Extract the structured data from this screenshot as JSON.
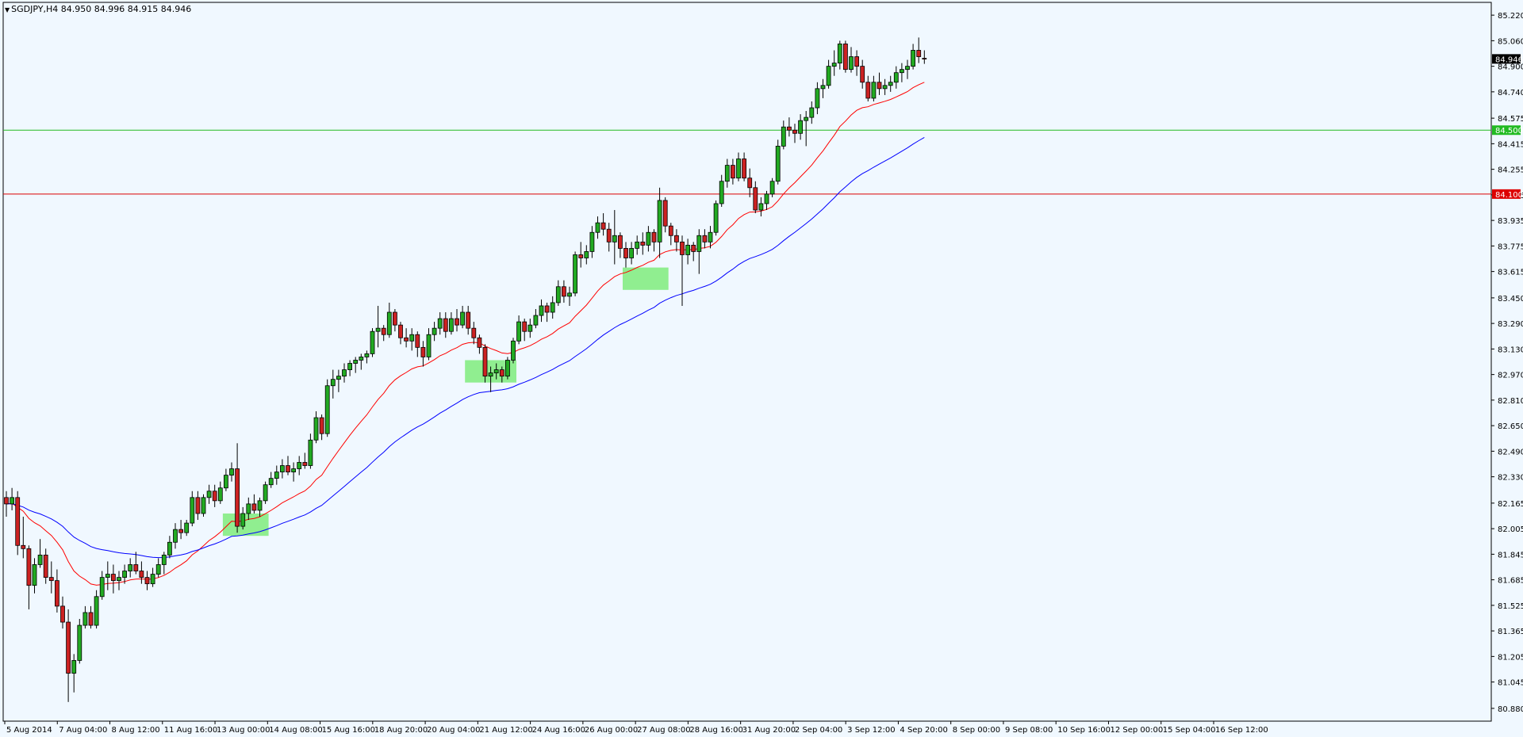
{
  "header": {
    "symbol": "SGDJPY,H4",
    "ohlc": "84.950 84.996 84.915 84.946"
  },
  "colors": {
    "background": "#f0f8ff",
    "bull": "#22aa22",
    "bear": "#cc2222",
    "ema_fast": "#ff0000",
    "ema_slow": "#0000ff",
    "support": "#22bb22",
    "resistance": "#dd0000",
    "highlight": "#90ee90"
  },
  "chart_data": {
    "type": "candlestick",
    "timeframe": "H4",
    "ylim": [
      80.8,
      85.3
    ],
    "y_ticks": [
      "85.220",
      "85.060",
      "84.900",
      "84.740",
      "84.575",
      "84.415",
      "84.255",
      "84.095",
      "83.935",
      "83.775",
      "83.615",
      "83.450",
      "83.290",
      "83.130",
      "82.970",
      "82.810",
      "82.650",
      "82.490",
      "82.330",
      "82.165",
      "82.005",
      "81.845",
      "81.685",
      "81.525",
      "81.365",
      "81.205",
      "81.045",
      "80.880"
    ],
    "x_ticks": [
      "5 Aug 2014",
      "7 Aug 04:00",
      "8 Aug 12:00",
      "11 Aug 16:00",
      "13 Aug 00:00",
      "14 Aug 08:00",
      "15 Aug 16:00",
      "18 Aug 20:00",
      "20 Aug 04:00",
      "21 Aug 12:00",
      "24 Aug 16:00",
      "26 Aug 00:00",
      "27 Aug 08:00",
      "28 Aug 16:00",
      "31 Aug 20:00",
      "2 Sep 04:00",
      "3 Sep 12:00",
      "4 Sep 20:00",
      "8 Sep 00:00",
      "9 Sep 08:00",
      "10 Sep 16:00",
      "12 Sep 00:00",
      "15 Sep 04:00",
      "16 Sep 12:00"
    ],
    "price_tags": {
      "current": "84.946",
      "support": "84.500",
      "resistance": "84.100"
    },
    "horizontal_lines": [
      {
        "name": "support",
        "price": 84.5
      },
      {
        "name": "resistance",
        "price": 84.1
      }
    ],
    "candles": [
      {
        "o": 82.2,
        "h": 82.24,
        "l": 82.08,
        "c": 82.16
      },
      {
        "o": 82.16,
        "h": 82.26,
        "l": 82.12,
        "c": 82.2
      },
      {
        "o": 82.2,
        "h": 82.24,
        "l": 81.84,
        "c": 81.9
      },
      {
        "o": 81.9,
        "h": 82.08,
        "l": 81.82,
        "c": 81.88
      },
      {
        "o": 81.88,
        "h": 81.9,
        "l": 81.5,
        "c": 81.65
      },
      {
        "o": 81.65,
        "h": 81.82,
        "l": 81.6,
        "c": 81.78
      },
      {
        "o": 81.78,
        "h": 81.94,
        "l": 81.76,
        "c": 81.84
      },
      {
        "o": 81.84,
        "h": 81.88,
        "l": 81.66,
        "c": 81.7
      },
      {
        "o": 81.7,
        "h": 81.8,
        "l": 81.6,
        "c": 81.68
      },
      {
        "o": 81.68,
        "h": 81.75,
        "l": 81.48,
        "c": 81.52
      },
      {
        "o": 81.52,
        "h": 81.58,
        "l": 81.38,
        "c": 81.42
      },
      {
        "o": 81.42,
        "h": 81.5,
        "l": 80.92,
        "c": 81.1
      },
      {
        "o": 81.1,
        "h": 81.22,
        "l": 80.98,
        "c": 81.18
      },
      {
        "o": 81.18,
        "h": 81.44,
        "l": 81.16,
        "c": 81.4
      },
      {
        "o": 81.4,
        "h": 81.52,
        "l": 81.38,
        "c": 81.48
      },
      {
        "o": 81.48,
        "h": 81.52,
        "l": 81.38,
        "c": 81.4
      },
      {
        "o": 81.4,
        "h": 81.62,
        "l": 81.38,
        "c": 81.58
      },
      {
        "o": 81.58,
        "h": 81.74,
        "l": 81.56,
        "c": 81.7
      },
      {
        "o": 81.7,
        "h": 81.8,
        "l": 81.62,
        "c": 81.72
      },
      {
        "o": 81.72,
        "h": 81.78,
        "l": 81.6,
        "c": 81.68
      },
      {
        "o": 81.68,
        "h": 81.74,
        "l": 81.62,
        "c": 81.7
      },
      {
        "o": 81.7,
        "h": 81.78,
        "l": 81.66,
        "c": 81.74
      },
      {
        "o": 81.74,
        "h": 81.82,
        "l": 81.7,
        "c": 81.78
      },
      {
        "o": 81.78,
        "h": 81.86,
        "l": 81.72,
        "c": 81.74
      },
      {
        "o": 81.74,
        "h": 81.8,
        "l": 81.66,
        "c": 81.7
      },
      {
        "o": 81.7,
        "h": 81.74,
        "l": 81.62,
        "c": 81.66
      },
      {
        "o": 81.66,
        "h": 81.76,
        "l": 81.64,
        "c": 81.72
      },
      {
        "o": 81.72,
        "h": 81.82,
        "l": 81.7,
        "c": 81.78
      },
      {
        "o": 81.78,
        "h": 81.86,
        "l": 81.72,
        "c": 81.84
      },
      {
        "o": 81.84,
        "h": 81.96,
        "l": 81.82,
        "c": 81.92
      },
      {
        "o": 81.92,
        "h": 82.04,
        "l": 81.88,
        "c": 82.0
      },
      {
        "o": 82.0,
        "h": 82.06,
        "l": 81.94,
        "c": 81.98
      },
      {
        "o": 81.98,
        "h": 82.06,
        "l": 81.96,
        "c": 82.04
      },
      {
        "o": 82.04,
        "h": 82.24,
        "l": 82.02,
        "c": 82.2
      },
      {
        "o": 82.2,
        "h": 82.24,
        "l": 82.06,
        "c": 82.1
      },
      {
        "o": 82.1,
        "h": 82.22,
        "l": 82.08,
        "c": 82.2
      },
      {
        "o": 82.2,
        "h": 82.28,
        "l": 82.16,
        "c": 82.24
      },
      {
        "o": 82.24,
        "h": 82.28,
        "l": 82.14,
        "c": 82.18
      },
      {
        "o": 82.18,
        "h": 82.3,
        "l": 82.16,
        "c": 82.26
      },
      {
        "o": 82.26,
        "h": 82.38,
        "l": 82.24,
        "c": 82.34
      },
      {
        "o": 82.34,
        "h": 82.42,
        "l": 82.3,
        "c": 82.38
      },
      {
        "o": 82.38,
        "h": 82.54,
        "l": 81.98,
        "c": 82.02
      },
      {
        "o": 82.02,
        "h": 82.14,
        "l": 82.0,
        "c": 82.1
      },
      {
        "o": 82.1,
        "h": 82.2,
        "l": 82.06,
        "c": 82.16
      },
      {
        "o": 82.16,
        "h": 82.22,
        "l": 82.1,
        "c": 82.12
      },
      {
        "o": 82.12,
        "h": 82.2,
        "l": 82.08,
        "c": 82.18
      },
      {
        "o": 82.18,
        "h": 82.3,
        "l": 82.16,
        "c": 82.28
      },
      {
        "o": 82.28,
        "h": 82.36,
        "l": 82.26,
        "c": 82.32
      },
      {
        "o": 82.32,
        "h": 82.4,
        "l": 82.28,
        "c": 82.36
      },
      {
        "o": 82.36,
        "h": 82.44,
        "l": 82.32,
        "c": 82.4
      },
      {
        "o": 82.4,
        "h": 82.46,
        "l": 82.34,
        "c": 82.36
      },
      {
        "o": 82.36,
        "h": 82.42,
        "l": 82.3,
        "c": 82.38
      },
      {
        "o": 82.38,
        "h": 82.46,
        "l": 82.34,
        "c": 82.42
      },
      {
        "o": 82.42,
        "h": 82.48,
        "l": 82.38,
        "c": 82.4
      },
      {
        "o": 82.4,
        "h": 82.6,
        "l": 82.38,
        "c": 82.56
      },
      {
        "o": 82.56,
        "h": 82.74,
        "l": 82.54,
        "c": 82.7
      },
      {
        "o": 82.7,
        "h": 82.72,
        "l": 82.56,
        "c": 82.6
      },
      {
        "o": 82.6,
        "h": 82.94,
        "l": 82.58,
        "c": 82.9
      },
      {
        "o": 82.9,
        "h": 83.0,
        "l": 82.82,
        "c": 82.94
      },
      {
        "o": 82.94,
        "h": 83.0,
        "l": 82.86,
        "c": 82.96
      },
      {
        "o": 82.96,
        "h": 83.04,
        "l": 82.92,
        "c": 83.0
      },
      {
        "o": 83.0,
        "h": 83.06,
        "l": 82.96,
        "c": 83.04
      },
      {
        "o": 83.04,
        "h": 83.08,
        "l": 82.98,
        "c": 83.06
      },
      {
        "o": 83.06,
        "h": 83.1,
        "l": 83.0,
        "c": 83.08
      },
      {
        "o": 83.08,
        "h": 83.12,
        "l": 83.04,
        "c": 83.1
      },
      {
        "o": 83.1,
        "h": 83.26,
        "l": 83.08,
        "c": 83.24
      },
      {
        "o": 83.24,
        "h": 83.4,
        "l": 83.14,
        "c": 83.26
      },
      {
        "o": 83.26,
        "h": 83.28,
        "l": 83.18,
        "c": 83.22
      },
      {
        "o": 83.22,
        "h": 83.42,
        "l": 83.2,
        "c": 83.36
      },
      {
        "o": 83.36,
        "h": 83.38,
        "l": 83.24,
        "c": 83.28
      },
      {
        "o": 83.28,
        "h": 83.3,
        "l": 83.16,
        "c": 83.2
      },
      {
        "o": 83.2,
        "h": 83.26,
        "l": 83.14,
        "c": 83.18
      },
      {
        "o": 83.18,
        "h": 83.26,
        "l": 83.12,
        "c": 83.22
      },
      {
        "o": 83.22,
        "h": 83.24,
        "l": 83.08,
        "c": 83.14
      },
      {
        "o": 83.14,
        "h": 83.18,
        "l": 83.02,
        "c": 83.08
      },
      {
        "o": 83.08,
        "h": 83.26,
        "l": 83.06,
        "c": 83.22
      },
      {
        "o": 83.22,
        "h": 83.3,
        "l": 83.18,
        "c": 83.26
      },
      {
        "o": 83.26,
        "h": 83.36,
        "l": 83.22,
        "c": 83.32
      },
      {
        "o": 83.32,
        "h": 83.36,
        "l": 83.2,
        "c": 83.24
      },
      {
        "o": 83.24,
        "h": 83.36,
        "l": 83.22,
        "c": 83.32
      },
      {
        "o": 83.32,
        "h": 83.38,
        "l": 83.24,
        "c": 83.28
      },
      {
        "o": 83.28,
        "h": 83.4,
        "l": 83.26,
        "c": 83.36
      },
      {
        "o": 83.36,
        "h": 83.4,
        "l": 83.22,
        "c": 83.26
      },
      {
        "o": 83.26,
        "h": 83.3,
        "l": 83.16,
        "c": 83.2
      },
      {
        "o": 83.2,
        "h": 83.22,
        "l": 83.1,
        "c": 83.14
      },
      {
        "o": 83.14,
        "h": 83.16,
        "l": 82.92,
        "c": 82.96
      },
      {
        "o": 82.96,
        "h": 83.02,
        "l": 82.86,
        "c": 82.98
      },
      {
        "o": 82.98,
        "h": 83.04,
        "l": 82.94,
        "c": 83.0
      },
      {
        "o": 83.0,
        "h": 83.02,
        "l": 82.92,
        "c": 82.96
      },
      {
        "o": 82.96,
        "h": 83.08,
        "l": 82.94,
        "c": 83.06
      },
      {
        "o": 83.06,
        "h": 83.2,
        "l": 83.04,
        "c": 83.18
      },
      {
        "o": 83.18,
        "h": 83.34,
        "l": 83.16,
        "c": 83.3
      },
      {
        "o": 83.3,
        "h": 83.32,
        "l": 83.18,
        "c": 83.24
      },
      {
        "o": 83.24,
        "h": 83.32,
        "l": 83.2,
        "c": 83.28
      },
      {
        "o": 83.28,
        "h": 83.38,
        "l": 83.26,
        "c": 83.34
      },
      {
        "o": 83.34,
        "h": 83.44,
        "l": 83.3,
        "c": 83.4
      },
      {
        "o": 83.4,
        "h": 83.42,
        "l": 83.3,
        "c": 83.36
      },
      {
        "o": 83.36,
        "h": 83.46,
        "l": 83.32,
        "c": 83.42
      },
      {
        "o": 83.42,
        "h": 83.56,
        "l": 83.4,
        "c": 83.52
      },
      {
        "o": 83.52,
        "h": 83.56,
        "l": 83.42,
        "c": 83.46
      },
      {
        "o": 83.46,
        "h": 83.52,
        "l": 83.4,
        "c": 83.48
      },
      {
        "o": 83.48,
        "h": 83.74,
        "l": 83.46,
        "c": 83.72
      },
      {
        "o": 83.72,
        "h": 83.8,
        "l": 83.64,
        "c": 83.7
      },
      {
        "o": 83.7,
        "h": 83.78,
        "l": 83.66,
        "c": 83.74
      },
      {
        "o": 83.74,
        "h": 83.9,
        "l": 83.7,
        "c": 83.86
      },
      {
        "o": 83.86,
        "h": 83.96,
        "l": 83.82,
        "c": 83.92
      },
      {
        "o": 83.92,
        "h": 83.98,
        "l": 83.84,
        "c": 83.88
      },
      {
        "o": 83.88,
        "h": 83.92,
        "l": 83.74,
        "c": 83.8
      },
      {
        "o": 83.8,
        "h": 84.0,
        "l": 83.66,
        "c": 83.84
      },
      {
        "o": 83.84,
        "h": 83.86,
        "l": 83.7,
        "c": 83.76
      },
      {
        "o": 83.76,
        "h": 83.8,
        "l": 83.64,
        "c": 83.7
      },
      {
        "o": 83.7,
        "h": 83.8,
        "l": 83.66,
        "c": 83.76
      },
      {
        "o": 83.76,
        "h": 83.84,
        "l": 83.72,
        "c": 83.8
      },
      {
        "o": 83.8,
        "h": 83.86,
        "l": 83.72,
        "c": 83.78
      },
      {
        "o": 83.78,
        "h": 83.9,
        "l": 83.74,
        "c": 83.86
      },
      {
        "o": 83.86,
        "h": 83.88,
        "l": 83.74,
        "c": 83.8
      },
      {
        "o": 83.8,
        "h": 84.14,
        "l": 83.7,
        "c": 84.06
      },
      {
        "o": 84.06,
        "h": 84.08,
        "l": 83.86,
        "c": 83.9
      },
      {
        "o": 83.9,
        "h": 83.92,
        "l": 83.78,
        "c": 83.84
      },
      {
        "o": 83.84,
        "h": 83.88,
        "l": 83.74,
        "c": 83.8
      },
      {
        "o": 83.8,
        "h": 83.84,
        "l": 83.4,
        "c": 83.72
      },
      {
        "o": 83.72,
        "h": 83.82,
        "l": 83.66,
        "c": 83.78
      },
      {
        "o": 83.78,
        "h": 83.8,
        "l": 83.68,
        "c": 83.74
      },
      {
        "o": 83.74,
        "h": 83.88,
        "l": 83.6,
        "c": 83.84
      },
      {
        "o": 83.84,
        "h": 83.88,
        "l": 83.76,
        "c": 83.8
      },
      {
        "o": 83.8,
        "h": 83.9,
        "l": 83.76,
        "c": 83.86
      },
      {
        "o": 83.86,
        "h": 84.06,
        "l": 83.84,
        "c": 84.04
      },
      {
        "o": 84.04,
        "h": 84.22,
        "l": 84.02,
        "c": 84.18
      },
      {
        "o": 84.18,
        "h": 84.32,
        "l": 84.14,
        "c": 84.28
      },
      {
        "o": 84.28,
        "h": 84.32,
        "l": 84.16,
        "c": 84.2
      },
      {
        "o": 84.2,
        "h": 84.36,
        "l": 84.18,
        "c": 84.32
      },
      {
        "o": 84.32,
        "h": 84.36,
        "l": 84.18,
        "c": 84.2
      },
      {
        "o": 84.2,
        "h": 84.26,
        "l": 84.08,
        "c": 84.14
      },
      {
        "o": 84.14,
        "h": 84.18,
        "l": 83.98,
        "c": 84.0
      },
      {
        "o": 84.0,
        "h": 84.08,
        "l": 83.96,
        "c": 84.04
      },
      {
        "o": 84.04,
        "h": 84.12,
        "l": 84.0,
        "c": 84.1
      },
      {
        "o": 84.1,
        "h": 84.2,
        "l": 84.08,
        "c": 84.18
      },
      {
        "o": 84.18,
        "h": 84.44,
        "l": 84.16,
        "c": 84.4
      },
      {
        "o": 84.4,
        "h": 84.56,
        "l": 84.38,
        "c": 84.52
      },
      {
        "o": 84.52,
        "h": 84.58,
        "l": 84.46,
        "c": 84.5
      },
      {
        "o": 84.5,
        "h": 84.54,
        "l": 84.42,
        "c": 84.48
      },
      {
        "o": 84.48,
        "h": 84.6,
        "l": 84.44,
        "c": 84.56
      },
      {
        "o": 84.56,
        "h": 84.62,
        "l": 84.4,
        "c": 84.58
      },
      {
        "o": 84.58,
        "h": 84.68,
        "l": 84.54,
        "c": 84.64
      },
      {
        "o": 84.64,
        "h": 84.8,
        "l": 84.6,
        "c": 84.76
      },
      {
        "o": 84.76,
        "h": 84.82,
        "l": 84.7,
        "c": 84.78
      },
      {
        "o": 84.78,
        "h": 84.94,
        "l": 84.76,
        "c": 84.9
      },
      {
        "o": 84.9,
        "h": 85.0,
        "l": 84.84,
        "c": 84.92
      },
      {
        "o": 84.92,
        "h": 85.06,
        "l": 84.88,
        "c": 85.04
      },
      {
        "o": 85.04,
        "h": 85.06,
        "l": 84.86,
        "c": 84.88
      },
      {
        "o": 84.88,
        "h": 85.02,
        "l": 84.86,
        "c": 84.96
      },
      {
        "o": 84.96,
        "h": 85.0,
        "l": 84.84,
        "c": 84.9
      },
      {
        "o": 84.9,
        "h": 84.94,
        "l": 84.76,
        "c": 84.8
      },
      {
        "o": 84.8,
        "h": 84.84,
        "l": 84.68,
        "c": 84.7
      },
      {
        "o": 84.7,
        "h": 84.84,
        "l": 84.68,
        "c": 84.8
      },
      {
        "o": 84.8,
        "h": 84.86,
        "l": 84.72,
        "c": 84.76
      },
      {
        "o": 84.76,
        "h": 84.82,
        "l": 84.72,
        "c": 84.78
      },
      {
        "o": 84.78,
        "h": 84.84,
        "l": 84.74,
        "c": 84.8
      },
      {
        "o": 84.8,
        "h": 84.9,
        "l": 84.76,
        "c": 84.86
      },
      {
        "o": 84.86,
        "h": 84.92,
        "l": 84.8,
        "c": 84.88
      },
      {
        "o": 84.88,
        "h": 84.94,
        "l": 84.82,
        "c": 84.9
      },
      {
        "o": 84.9,
        "h": 85.04,
        "l": 84.88,
        "c": 85.0
      },
      {
        "o": 85.0,
        "h": 85.08,
        "l": 84.92,
        "c": 84.96
      },
      {
        "o": 84.95,
        "h": 85.0,
        "l": 84.915,
        "c": 84.946
      }
    ],
    "highlight_zones": [
      {
        "i0": 39,
        "i1": 46,
        "p0": 82.1,
        "p1": 81.96
      },
      {
        "i0": 82,
        "i1": 90,
        "p0": 83.06,
        "p1": 82.92
      },
      {
        "i0": 110,
        "i1": 117,
        "p0": 83.64,
        "p1": 83.5
      }
    ]
  }
}
